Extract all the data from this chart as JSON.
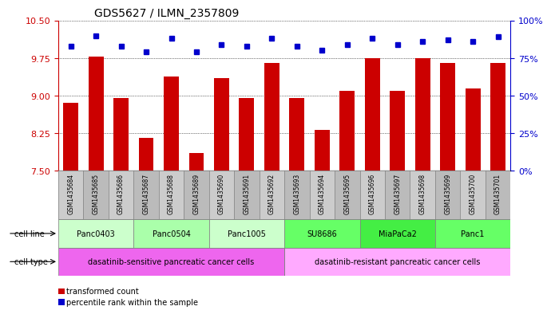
{
  "title": "GDS5627 / ILMN_2357809",
  "samples": [
    "GSM1435684",
    "GSM1435685",
    "GSM1435686",
    "GSM1435687",
    "GSM1435688",
    "GSM1435689",
    "GSM1435690",
    "GSM1435691",
    "GSM1435692",
    "GSM1435693",
    "GSM1435694",
    "GSM1435695",
    "GSM1435696",
    "GSM1435697",
    "GSM1435698",
    "GSM1435699",
    "GSM1435700",
    "GSM1435701"
  ],
  "bar_values": [
    8.85,
    9.78,
    8.95,
    8.15,
    9.38,
    7.85,
    9.35,
    8.95,
    9.65,
    8.95,
    8.32,
    9.1,
    9.75,
    9.1,
    9.75,
    9.65,
    9.15,
    9.65
  ],
  "dot_values": [
    83,
    90,
    83,
    79,
    88,
    79,
    84,
    83,
    88,
    83,
    80,
    84,
    88,
    84,
    86,
    87,
    86,
    89
  ],
  "ylim_left": [
    7.5,
    10.5
  ],
  "ylim_right": [
    0,
    100
  ],
  "yticks_left": [
    7.5,
    8.25,
    9.0,
    9.75,
    10.5
  ],
  "yticks_right": [
    0,
    25,
    50,
    75,
    100
  ],
  "ytick_labels_right": [
    "0%",
    "25%",
    "50%",
    "75%",
    "100%"
  ],
  "bar_color": "#cc0000",
  "dot_color": "#0000cc",
  "bar_width": 0.6,
  "cell_lines": [
    {
      "label": "Panc0403",
      "start": 0,
      "end": 2,
      "color": "#ccffcc"
    },
    {
      "label": "Panc0504",
      "start": 3,
      "end": 5,
      "color": "#aaffaa"
    },
    {
      "label": "Panc1005",
      "start": 6,
      "end": 8,
      "color": "#ccffcc"
    },
    {
      "label": "SU8686",
      "start": 9,
      "end": 11,
      "color": "#66ff66"
    },
    {
      "label": "MiaPaCa2",
      "start": 12,
      "end": 14,
      "color": "#44ee44"
    },
    {
      "label": "Panc1",
      "start": 15,
      "end": 17,
      "color": "#66ff66"
    }
  ],
  "cell_types": [
    {
      "label": "dasatinib-sensitive pancreatic cancer cells",
      "start": 0,
      "end": 8,
      "color": "#ee66ee"
    },
    {
      "label": "dasatinib-resistant pancreatic cancer cells",
      "start": 9,
      "end": 17,
      "color": "#ffaaff"
    }
  ],
  "legend_items": [
    {
      "color": "#cc0000",
      "label": "transformed count"
    },
    {
      "color": "#0000cc",
      "label": "percentile rank within the sample"
    }
  ],
  "cell_line_label": "cell line",
  "cell_type_label": "cell type",
  "background_color": "#ffffff",
  "plot_bg_color": "#ffffff",
  "tick_color_left": "#cc0000",
  "tick_color_right": "#0000cc"
}
